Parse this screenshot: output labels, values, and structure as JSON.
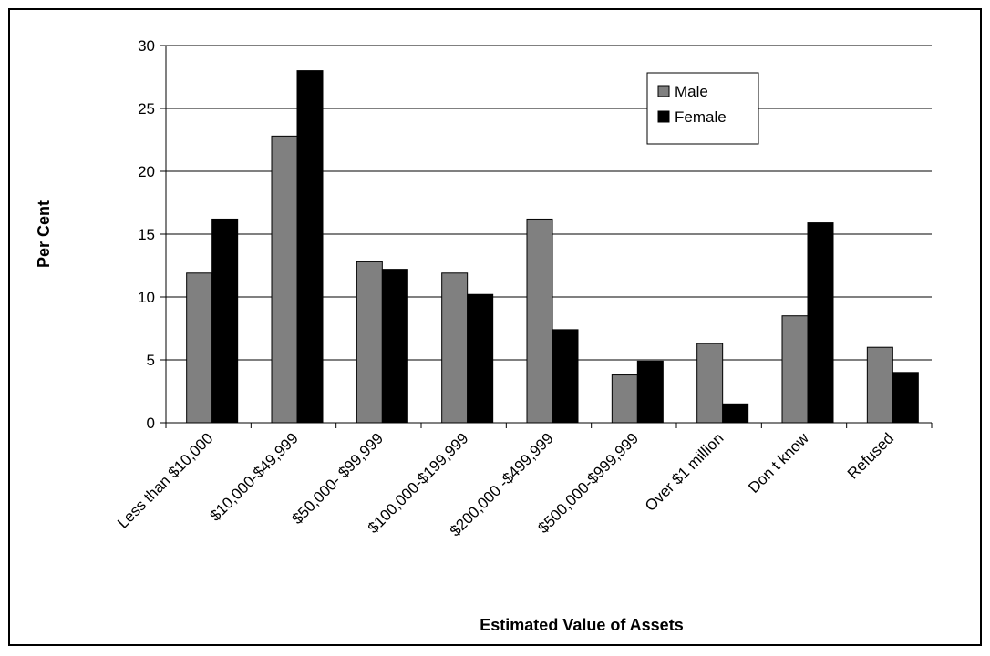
{
  "chart_data": {
    "type": "bar",
    "x_label": "Estimated Value of Assets",
    "y_label": "Per Cent",
    "categories": [
      "Less than $10,000",
      "$10,000-$49,999",
      "$50,000- $99,999",
      "$100,000-$199,999",
      "$200,000 -$499,999",
      "$500,000-$999,999",
      "Over $1 million",
      "Don t know",
      "Refused"
    ],
    "series": [
      {
        "name": "Male",
        "color": "#808080",
        "values": [
          11.9,
          22.8,
          12.8,
          11.9,
          16.2,
          3.8,
          6.3,
          8.5,
          6.0
        ]
      },
      {
        "name": "Female",
        "color": "#000000",
        "values": [
          16.2,
          28.0,
          12.2,
          10.2,
          7.4,
          4.9,
          1.5,
          15.9,
          4.0
        ]
      }
    ],
    "ylim": [
      0,
      30
    ],
    "yticks": [
      0,
      5,
      10,
      15,
      20,
      25,
      30
    ],
    "grid": true,
    "legend": "upper right"
  }
}
